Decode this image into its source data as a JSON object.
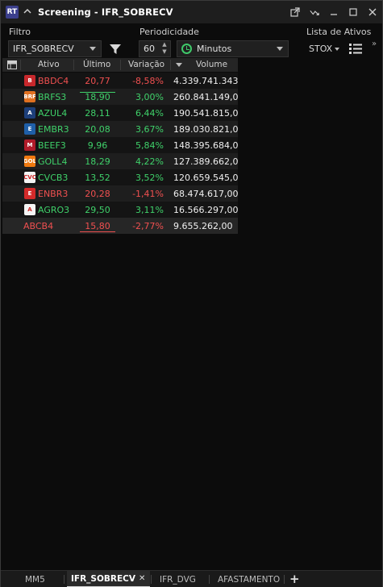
{
  "window": {
    "logo": "RT",
    "title": "Screening - IFR_SOBRECV",
    "icons": [
      "popout-icon",
      "chart-trend-icon",
      "minimize-icon",
      "maximize-icon",
      "close-icon"
    ]
  },
  "filters": {
    "filtro_label": "Filtro",
    "filtro_value": "IFR_SOBRECV",
    "periodicidade_label": "Periodicidade",
    "periodo_value": "60",
    "periodo_unit": "Minutos",
    "lista_label": "Lista de Ativos",
    "lista_value": "STOX"
  },
  "table": {
    "columns": [
      "Ativo",
      "Último",
      "Variação",
      "Volume"
    ],
    "rows": [
      {
        "ativo": "BBDC4",
        "ultimo": "20,77",
        "variacao": "-8,58%",
        "volume": "4.339.741.343,0",
        "trend": "down",
        "logo_color": "#c8282c",
        "logo_text": "B"
      },
      {
        "ativo": "BRFS3",
        "ultimo": "18,90",
        "variacao": "3,00%",
        "volume": "260.841.149,00",
        "trend": "up",
        "logo_color": "#e07020",
        "logo_text": "BRF"
      },
      {
        "ativo": "AZUL4",
        "ultimo": "28,11",
        "variacao": "6,44%",
        "volume": "190.541.815,00",
        "trend": "up",
        "logo_color": "#1d3f7a",
        "logo_text": "A"
      },
      {
        "ativo": "EMBR3",
        "ultimo": "20,08",
        "variacao": "3,67%",
        "volume": "189.030.821,00",
        "trend": "up",
        "logo_color": "#1f5fa8",
        "logo_text": "E"
      },
      {
        "ativo": "BEEF3",
        "ultimo": "9,96",
        "variacao": "5,84%",
        "volume": "148.395.684,00",
        "trend": "up",
        "logo_color": "#b01c2a",
        "logo_text": "M"
      },
      {
        "ativo": "GOLL4",
        "ultimo": "18,29",
        "variacao": "4,22%",
        "volume": "127.389.662,00",
        "trend": "up",
        "logo_color": "#f07a10",
        "logo_text": "GOL"
      },
      {
        "ativo": "CVCB3",
        "ultimo": "13,52",
        "variacao": "3,52%",
        "volume": "120.659.545,00",
        "trend": "up",
        "logo_color": "#f4f4f4",
        "logo_text": "CVC"
      },
      {
        "ativo": "ENBR3",
        "ultimo": "20,28",
        "variacao": "-1,41%",
        "volume": "68.474.617,00",
        "trend": "down",
        "logo_color": "#d42a2a",
        "logo_text": "E"
      },
      {
        "ativo": "AGRO3",
        "ultimo": "29,50",
        "variacao": "3,11%",
        "volume": "16.566.297,00",
        "trend": "up",
        "logo_color": "#f4f4f4",
        "logo_text": "A"
      },
      {
        "ativo": "ABCB4",
        "ultimo": "15,80",
        "variacao": "-2,77%",
        "volume": "9.655.262,00",
        "trend": "down",
        "logo_color": "",
        "logo_text": ""
      }
    ]
  },
  "tabs": [
    {
      "label": "MM5",
      "active": false
    },
    {
      "label": "IFR_SOBRECV",
      "active": true
    },
    {
      "label": "IFR_DVG",
      "active": false
    },
    {
      "label": "AFASTAMENTO",
      "active": false
    }
  ],
  "colors": {
    "up": "#3fd16a",
    "down": "#f05050",
    "background": "#0c0c0c",
    "header": "#252525"
  }
}
